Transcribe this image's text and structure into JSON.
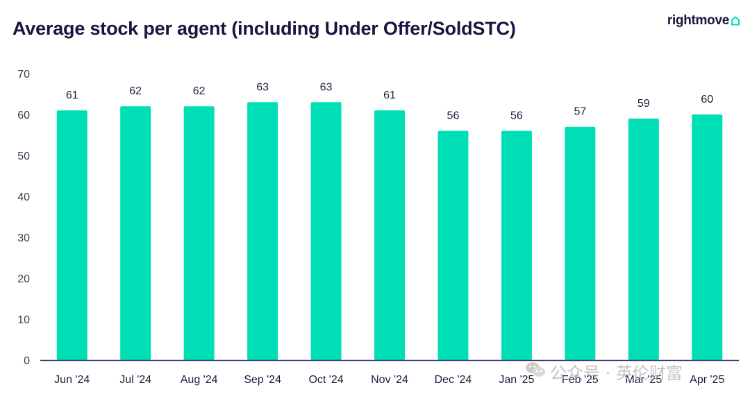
{
  "header": {
    "title": "Average stock per agent (including Under Offer/SoldSTC)",
    "logo_text": "rightmove"
  },
  "watermark": {
    "text": "公众号 · 英伦财富",
    "icon": "wechat-icon"
  },
  "colors": {
    "bar": "#00DEB6",
    "axis": "#2b2b5a",
    "title": "#16163f",
    "brand": "#00DEB6"
  },
  "chart_data": {
    "type": "bar",
    "title": "Average stock per agent (including Under Offer/SoldSTC)",
    "xlabel": "",
    "ylabel": "",
    "categories": [
      "Jun '24",
      "Jul '24",
      "Aug '24",
      "Sep '24",
      "Oct '24",
      "Nov '24",
      "Dec '24",
      "Jan '25",
      "Feb '25",
      "Mar '25",
      "Apr '25"
    ],
    "values": [
      61,
      62,
      62,
      63,
      63,
      61,
      56,
      56,
      57,
      59,
      60
    ],
    "ylim": [
      0,
      70
    ],
    "yticks": [
      0,
      10,
      20,
      30,
      40,
      50,
      60,
      70
    ],
    "grid": false,
    "legend": "none",
    "data_labels": true
  }
}
